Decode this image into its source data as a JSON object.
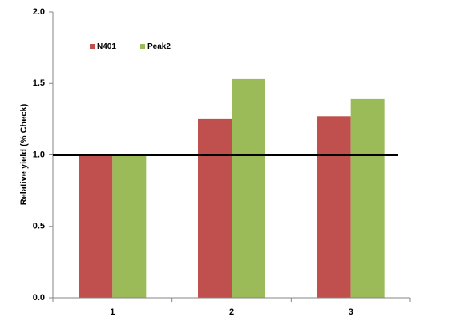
{
  "chart_data": {
    "type": "bar",
    "y_label": "Relative yield (% Check)",
    "categories": [
      "1",
      "2",
      "3"
    ],
    "series": [
      {
        "name": "N401",
        "color": "#c0504d",
        "values": [
          1.0,
          1.25,
          1.27
        ]
      },
      {
        "name": "Peak2",
        "color": "#9bbb59",
        "values": [
          1.0,
          1.53,
          1.39
        ]
      }
    ],
    "ylim": [
      0,
      2
    ],
    "yticks": [
      {
        "value": 0,
        "label": "0.0"
      },
      {
        "value": 0.5,
        "label": "0.5"
      },
      {
        "value": 1,
        "label": "1.0"
      },
      {
        "value": 1.5,
        "label": "1.5"
      },
      {
        "value": 2,
        "label": "2.0"
      }
    ],
    "reference_line": 1,
    "reference_line_color": "#000000",
    "grid": false,
    "legend_position": "top-left"
  }
}
